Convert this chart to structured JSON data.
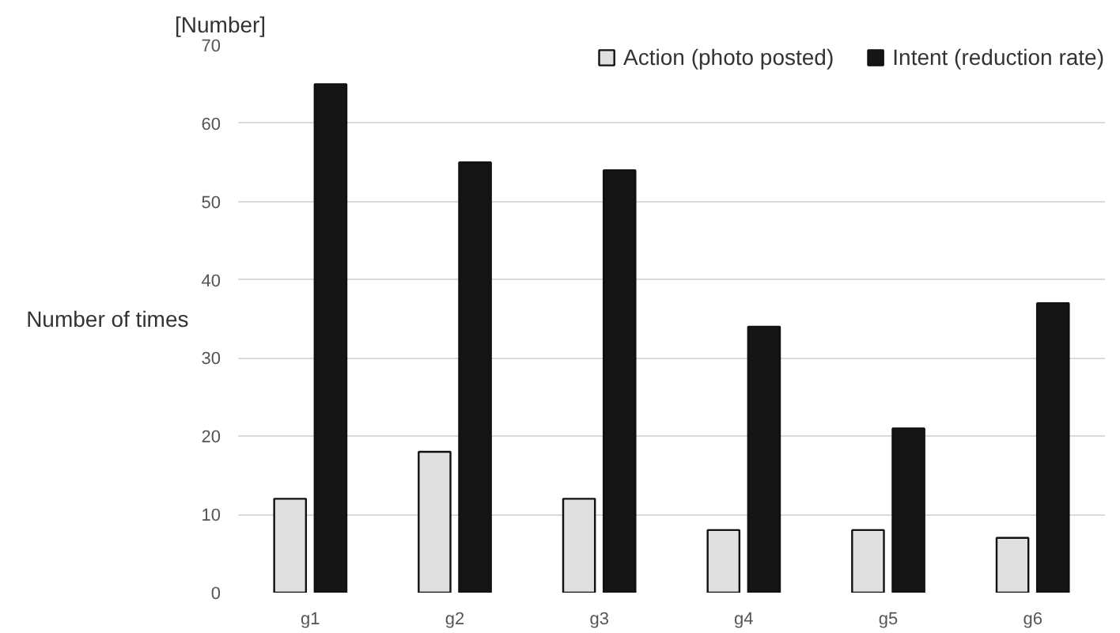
{
  "chart_data": {
    "type": "bar",
    "ylabel": "Number of times",
    "annotations": [
      "[Number]"
    ],
    "categories": [
      "g1",
      "g2",
      "g3",
      "g4",
      "g5",
      "g6"
    ],
    "series": [
      {
        "name": "Action (photo posted)",
        "color": "#e0e0e0",
        "values": [
          12,
          18,
          12,
          8,
          8,
          7
        ]
      },
      {
        "name": "Intent (reduction rate)",
        "color": "#151515",
        "values": [
          65,
          55,
          54,
          34,
          21,
          37
        ]
      }
    ],
    "ylim": [
      0,
      70
    ],
    "yticks": [
      0,
      10,
      20,
      30,
      40,
      50,
      60,
      70
    ],
    "grid": "y",
    "legend": "top right"
  }
}
